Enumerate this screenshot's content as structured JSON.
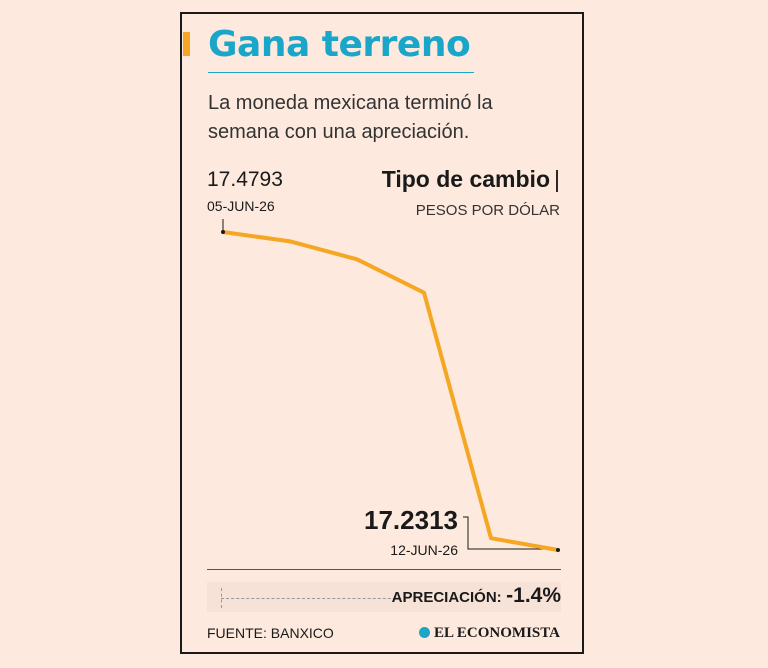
{
  "title": "Gana terreno",
  "subtitle": "La moneda mexicana terminó la semana con una apreciación.",
  "chart_label": "Tipo de cambio",
  "chart_unit": "PESOS POR DÓLAR",
  "start_annotation": {
    "value": "17.4793",
    "date": "05-JUN-26"
  },
  "end_annotation": {
    "value": "17.2313",
    "date": "12-JUN-26"
  },
  "change": {
    "label": "APRECIACIÓN:",
    "value": "-1.4%"
  },
  "source": "FUENTE: BANXICO",
  "brand": "EL ECONOMISTA",
  "colors": {
    "title": "#1aa6c8",
    "line": "#f5a623",
    "accent": "#f5a623",
    "background": "#fde9dd"
  },
  "chart_data": {
    "type": "line",
    "title": "Tipo de cambio",
    "ylabel": "PESOS POR DÓLAR",
    "x": [
      "05-JUN-26",
      "",
      "",
      "",
      "",
      "12-JUN-26"
    ],
    "series": [
      {
        "values": [
          17.4793,
          17.472,
          17.458,
          17.432,
          17.2405,
          17.2313
        ]
      }
    ],
    "ylim": [
      17.2313,
      17.4793
    ],
    "grid": false,
    "legend": "none"
  }
}
